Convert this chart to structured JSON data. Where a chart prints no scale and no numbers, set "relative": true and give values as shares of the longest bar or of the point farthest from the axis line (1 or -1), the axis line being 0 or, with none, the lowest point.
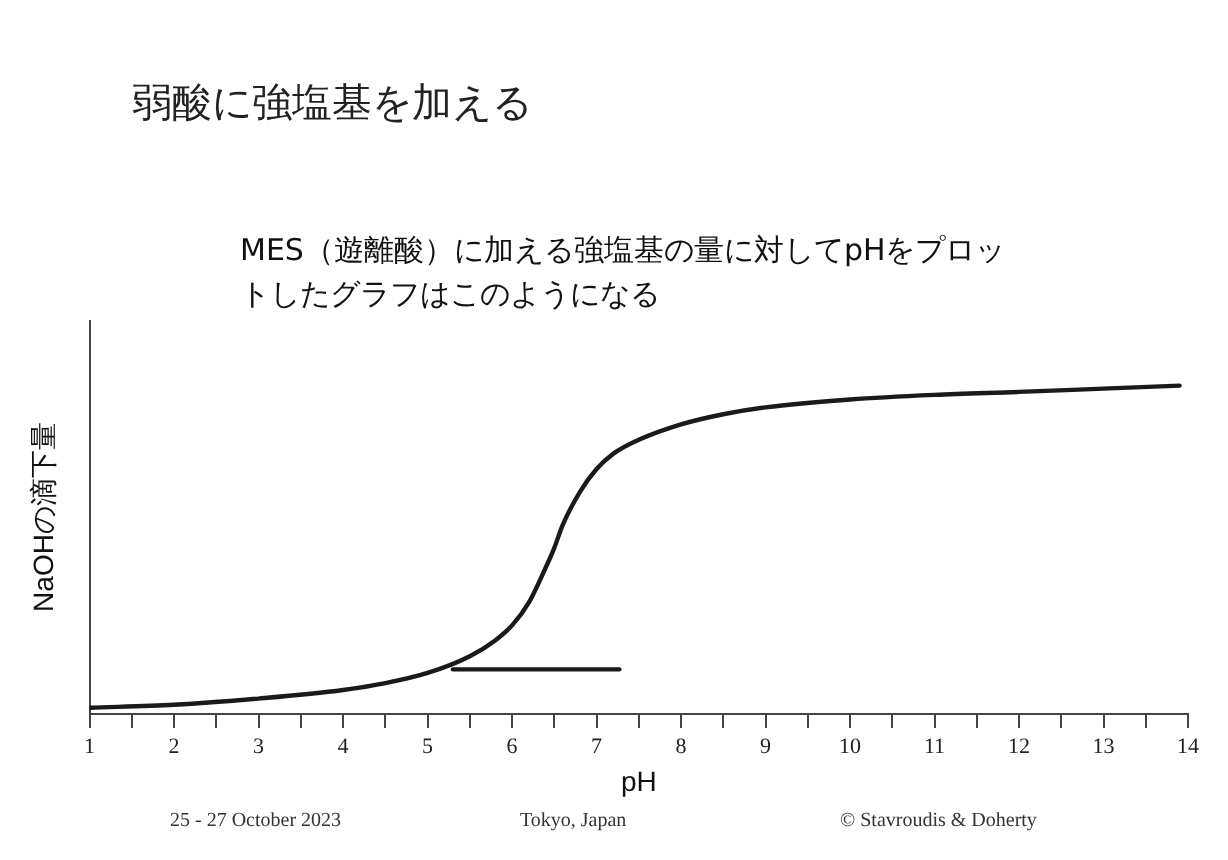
{
  "chart_data": {
    "type": "line",
    "title": "弱酸に強塩基を加える",
    "subtitle": "MES（遊離酸）に加える強塩基の量に対してpHをプロットしたグラフはこのようになる",
    "xlabel": "pH",
    "ylabel": "NaOHの滴下量",
    "relative": true,
    "xlim": [
      1,
      14
    ],
    "xticks": [
      1,
      {
        "value": 1.5,
        "label": null
      },
      2,
      {
        "value": 2.5,
        "label": null
      },
      3,
      {
        "value": 3.5,
        "label": null
      },
      4,
      {
        "value": 4.5,
        "label": null
      },
      5,
      {
        "value": 5.5,
        "label": null
      },
      6,
      {
        "value": 6.5,
        "label": null
      },
      7,
      {
        "value": 7.5,
        "label": null
      },
      8,
      {
        "value": 8.5,
        "label": null
      },
      9,
      {
        "value": 9.5,
        "label": null
      },
      10,
      {
        "value": 10.5,
        "label": null
      },
      11,
      {
        "value": 11.5,
        "label": null
      },
      12,
      {
        "value": 12.5,
        "label": null
      },
      13,
      {
        "value": 13.5,
        "label": null
      },
      14
    ],
    "x": [
      1,
      2,
      3,
      4,
      4.5,
      5,
      5.5,
      5.8,
      6,
      6.2,
      6.4,
      6.5,
      6.6,
      6.8,
      7,
      7.2,
      7.5,
      8,
      8.5,
      9,
      10,
      11,
      12,
      13,
      13.9
    ],
    "series": [
      {
        "color": "#1a1a1a",
        "values": [
          0.019,
          0.028,
          0.047,
          0.073,
          0.094,
          0.125,
          0.176,
          0.224,
          0.27,
          0.34,
          0.447,
          0.506,
          0.576,
          0.675,
          0.746,
          0.793,
          0.835,
          0.882,
          0.913,
          0.934,
          0.958,
          0.972,
          0.981,
          0.991,
          1
        ]
      },
      {
        "color": "#1a1a1a",
        "x": [
          5.3,
          7.27
        ],
        "values": [
          0.136,
          0.136
        ]
      }
    ],
    "grid": false,
    "legend": false,
    "marker": "none",
    "line_style": "solid",
    "annotations": [
      "25 - 27 October 2023",
      "Tokyo, Japan",
      "© Stavroudis & Doherty"
    ]
  }
}
